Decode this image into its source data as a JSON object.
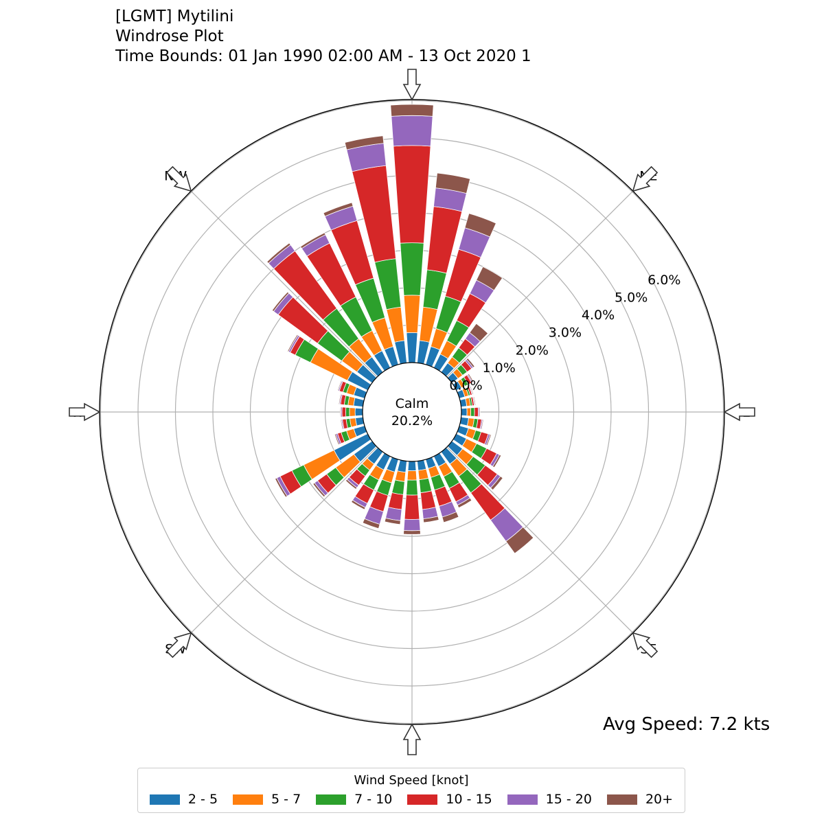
{
  "title_lines": [
    "[LGMT] Mytilini",
    "Windrose Plot",
    "Time Bounds: 01 Jan 1990 02:00 AM - 13 Oct 2020 1"
  ],
  "calm": {
    "label": "Calm",
    "value": "20.2%"
  },
  "avg_speed": "Avg Speed: 7.2 kts",
  "directions": [
    "N",
    "NE",
    "E",
    "SE",
    "S",
    "SW",
    "W",
    "NW"
  ],
  "radial_ticks": [
    "0.0%",
    "1.0%",
    "2.0%",
    "3.0%",
    "4.0%",
    "5.0%",
    "6.0%"
  ],
  "legend": {
    "title": "Wind Speed [knot]",
    "items": [
      {
        "label": "2 - 5",
        "color": "#1f77b4"
      },
      {
        "label": "5 - 7",
        "color": "#ff7f0e"
      },
      {
        "label": "7 - 10",
        "color": "#2ca02c"
      },
      {
        "label": "10 - 15",
        "color": "#d62728"
      },
      {
        "label": "15 - 20",
        "color": "#9467bd"
      },
      {
        "label": "20+",
        "color": "#8c564b"
      }
    ]
  },
  "chart_data": {
    "type": "windrose",
    "unit": "%",
    "direction_bin_width_deg": 10,
    "rlim": [
      0,
      6.5
    ],
    "grid": true,
    "series_names": [
      "2 - 5",
      "5 - 7",
      "7 - 10",
      "10 - 15",
      "15 - 20",
      "20+"
    ],
    "bins": [
      {
        "dir": 0,
        "values": [
          0.8,
          1.0,
          1.4,
          2.6,
          0.8,
          0.3
        ]
      },
      {
        "dir": 10,
        "values": [
          0.6,
          0.9,
          1.0,
          1.7,
          0.5,
          0.4
        ]
      },
      {
        "dir": 20,
        "values": [
          0.5,
          0.5,
          0.9,
          1.3,
          0.6,
          0.4
        ]
      },
      {
        "dir": 30,
        "values": [
          0.4,
          0.4,
          0.6,
          0.8,
          0.4,
          0.4
        ]
      },
      {
        "dir": 40,
        "values": [
          0.3,
          0.2,
          0.3,
          0.3,
          0.2,
          0.3
        ]
      },
      {
        "dir": 50,
        "values": [
          0.2,
          0.15,
          0.15,
          0.15,
          0.05,
          0.05
        ]
      },
      {
        "dir": 60,
        "values": [
          0.15,
          0.1,
          0.1,
          0.1,
          0.03,
          0.03
        ]
      },
      {
        "dir": 70,
        "values": [
          0.15,
          0.1,
          0.05,
          0.05,
          0.02,
          0.02
        ]
      },
      {
        "dir": 80,
        "values": [
          0.15,
          0.1,
          0.05,
          0.05,
          0.02,
          0.02
        ]
      },
      {
        "dir": 90,
        "values": [
          0.15,
          0.1,
          0.1,
          0.1,
          0.03,
          0.02
        ]
      },
      {
        "dir": 100,
        "values": [
          0.2,
          0.15,
          0.1,
          0.1,
          0.03,
          0.02
        ]
      },
      {
        "dir": 110,
        "values": [
          0.25,
          0.2,
          0.15,
          0.2,
          0.05,
          0.03
        ]
      },
      {
        "dir": 120,
        "values": [
          0.3,
          0.3,
          0.3,
          0.3,
          0.08,
          0.05
        ]
      },
      {
        "dir": 130,
        "values": [
          0.35,
          0.35,
          0.4,
          0.4,
          0.1,
          0.08
        ]
      },
      {
        "dir": 140,
        "values": [
          0.4,
          0.4,
          0.55,
          0.9,
          0.7,
          0.4
        ]
      },
      {
        "dir": 150,
        "values": [
          0.3,
          0.3,
          0.35,
          0.4,
          0.1,
          0.08
        ]
      },
      {
        "dir": 160,
        "values": [
          0.25,
          0.25,
          0.35,
          0.45,
          0.3,
          0.15
        ]
      },
      {
        "dir": 170,
        "values": [
          0.25,
          0.25,
          0.35,
          0.45,
          0.25,
          0.1
        ]
      },
      {
        "dir": 180,
        "values": [
          0.25,
          0.25,
          0.4,
          0.65,
          0.3,
          0.1
        ]
      },
      {
        "dir": 190,
        "values": [
          0.3,
          0.25,
          0.35,
          0.4,
          0.3,
          0.1
        ]
      },
      {
        "dir": 200,
        "values": [
          0.35,
          0.3,
          0.35,
          0.45,
          0.35,
          0.12
        ]
      },
      {
        "dir": 210,
        "values": [
          0.4,
          0.3,
          0.3,
          0.4,
          0.12,
          0.06
        ]
      },
      {
        "dir": 220,
        "values": [
          0.4,
          0.2,
          0.2,
          0.3,
          0.08,
          0.05
        ]
      },
      {
        "dir": 230,
        "values": [
          0.6,
          0.6,
          0.3,
          0.3,
          0.1,
          0.05
        ]
      },
      {
        "dir": 240,
        "values": [
          1.0,
          0.9,
          0.35,
          0.35,
          0.1,
          0.05
        ]
      },
      {
        "dir": 250,
        "values": [
          0.3,
          0.2,
          0.15,
          0.1,
          0.05,
          0.03
        ]
      },
      {
        "dir": 260,
        "values": [
          0.2,
          0.15,
          0.1,
          0.1,
          0.03,
          0.02
        ]
      },
      {
        "dir": 270,
        "values": [
          0.2,
          0.15,
          0.1,
          0.1,
          0.03,
          0.02
        ]
      },
      {
        "dir": 280,
        "values": [
          0.25,
          0.15,
          0.1,
          0.1,
          0.03,
          0.02
        ]
      },
      {
        "dir": 290,
        "values": [
          0.3,
          0.2,
          0.1,
          0.1,
          0.03,
          0.02
        ]
      },
      {
        "dir": 300,
        "values": [
          0.6,
          1.1,
          0.45,
          0.15,
          0.05,
          0.03
        ]
      },
      {
        "dir": 310,
        "values": [
          0.5,
          0.5,
          0.8,
          1.3,
          0.15,
          0.05
        ]
      },
      {
        "dir": 320,
        "values": [
          0.5,
          0.6,
          1.0,
          1.9,
          0.2,
          0.06
        ]
      },
      {
        "dir": 330,
        "values": [
          0.5,
          0.6,
          1.0,
          1.6,
          0.25,
          0.06
        ]
      },
      {
        "dir": 340,
        "values": [
          0.5,
          0.8,
          1.1,
          1.6,
          0.4,
          0.1
        ]
      },
      {
        "dir": 350,
        "values": [
          0.6,
          0.9,
          1.3,
          2.5,
          0.6,
          0.2
        ]
      }
    ]
  }
}
